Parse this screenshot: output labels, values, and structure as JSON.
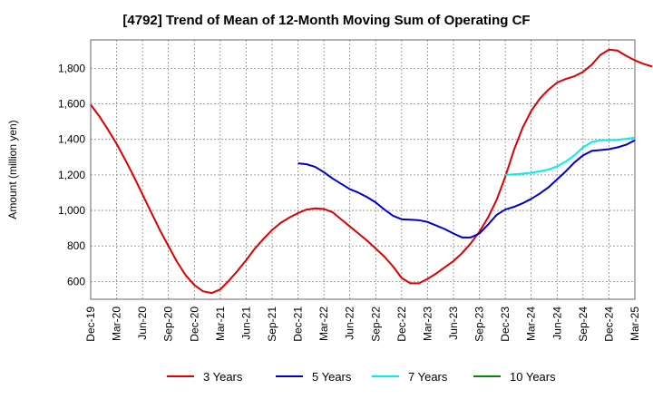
{
  "chart_data": {
    "type": "line",
    "title": "[4792]  Trend of Mean of 12-Month Moving Sum of Operating CF",
    "xlabel": "",
    "ylabel": "Amount (million yen)",
    "ylim": [
      500,
      1960
    ],
    "yticks": [
      600,
      800,
      1000,
      1200,
      1400,
      1600,
      1800
    ],
    "ytick_labels": [
      "600",
      "800",
      "1,000",
      "1,200",
      "1,400",
      "1,600",
      "1,800"
    ],
    "x_labels": [
      "Dec-19",
      "Mar-20",
      "Jun-20",
      "Sep-20",
      "Dec-20",
      "Mar-21",
      "Jun-21",
      "Sep-21",
      "Dec-21",
      "Mar-22",
      "Jun-22",
      "Sep-22",
      "Dec-22",
      "Mar-23",
      "Jun-23",
      "Sep-23",
      "Dec-23",
      "Mar-24",
      "Jun-24",
      "Sep-24",
      "Dec-24",
      "Mar-25"
    ],
    "grid": true,
    "legend_position": "bottom",
    "series": [
      {
        "name": "3 Years",
        "color": "#dd0000",
        "start_month": 0,
        "values": [
          1595,
          1530,
          1455,
          1375,
          1285,
          1190,
          1090,
          990,
          890,
          800,
          710,
          635,
          580,
          545,
          535,
          555,
          605,
          660,
          720,
          785,
          840,
          890,
          930,
          960,
          985,
          1005,
          1012,
          1008,
          990,
          950,
          910,
          870,
          830,
          785,
          740,
          685,
          620,
          590,
          590,
          615,
          645,
          680,
          715,
          760,
          815,
          880,
          960,
          1060,
          1190,
          1340,
          1465,
          1560,
          1630,
          1680,
          1720,
          1740,
          1755,
          1780,
          1820,
          1875,
          1905,
          1900,
          1870,
          1845,
          1825,
          1810
        ]
      },
      {
        "name": "5 Years",
        "color": "#0000cc",
        "start_month": 24,
        "values": [
          1265,
          1260,
          1245,
          1215,
          1180,
          1150,
          1120,
          1100,
          1075,
          1045,
          1005,
          970,
          950,
          948,
          945,
          935,
          915,
          895,
          870,
          848,
          848,
          870,
          920,
          975,
          1005,
          1020,
          1040,
          1065,
          1095,
          1130,
          1175,
          1220,
          1270,
          1310,
          1335,
          1340,
          1345,
          1355,
          1370,
          1395
        ]
      },
      {
        "name": "7 Years",
        "color": "#00eeee",
        "start_month": 48,
        "values": [
          1200,
          1203,
          1207,
          1212,
          1220,
          1230,
          1248,
          1275,
          1310,
          1355,
          1385,
          1395,
          1395,
          1398,
          1403,
          1410
        ]
      },
      {
        "name": "10 Years",
        "color": "#008800",
        "start_month": 0,
        "values": []
      }
    ]
  }
}
